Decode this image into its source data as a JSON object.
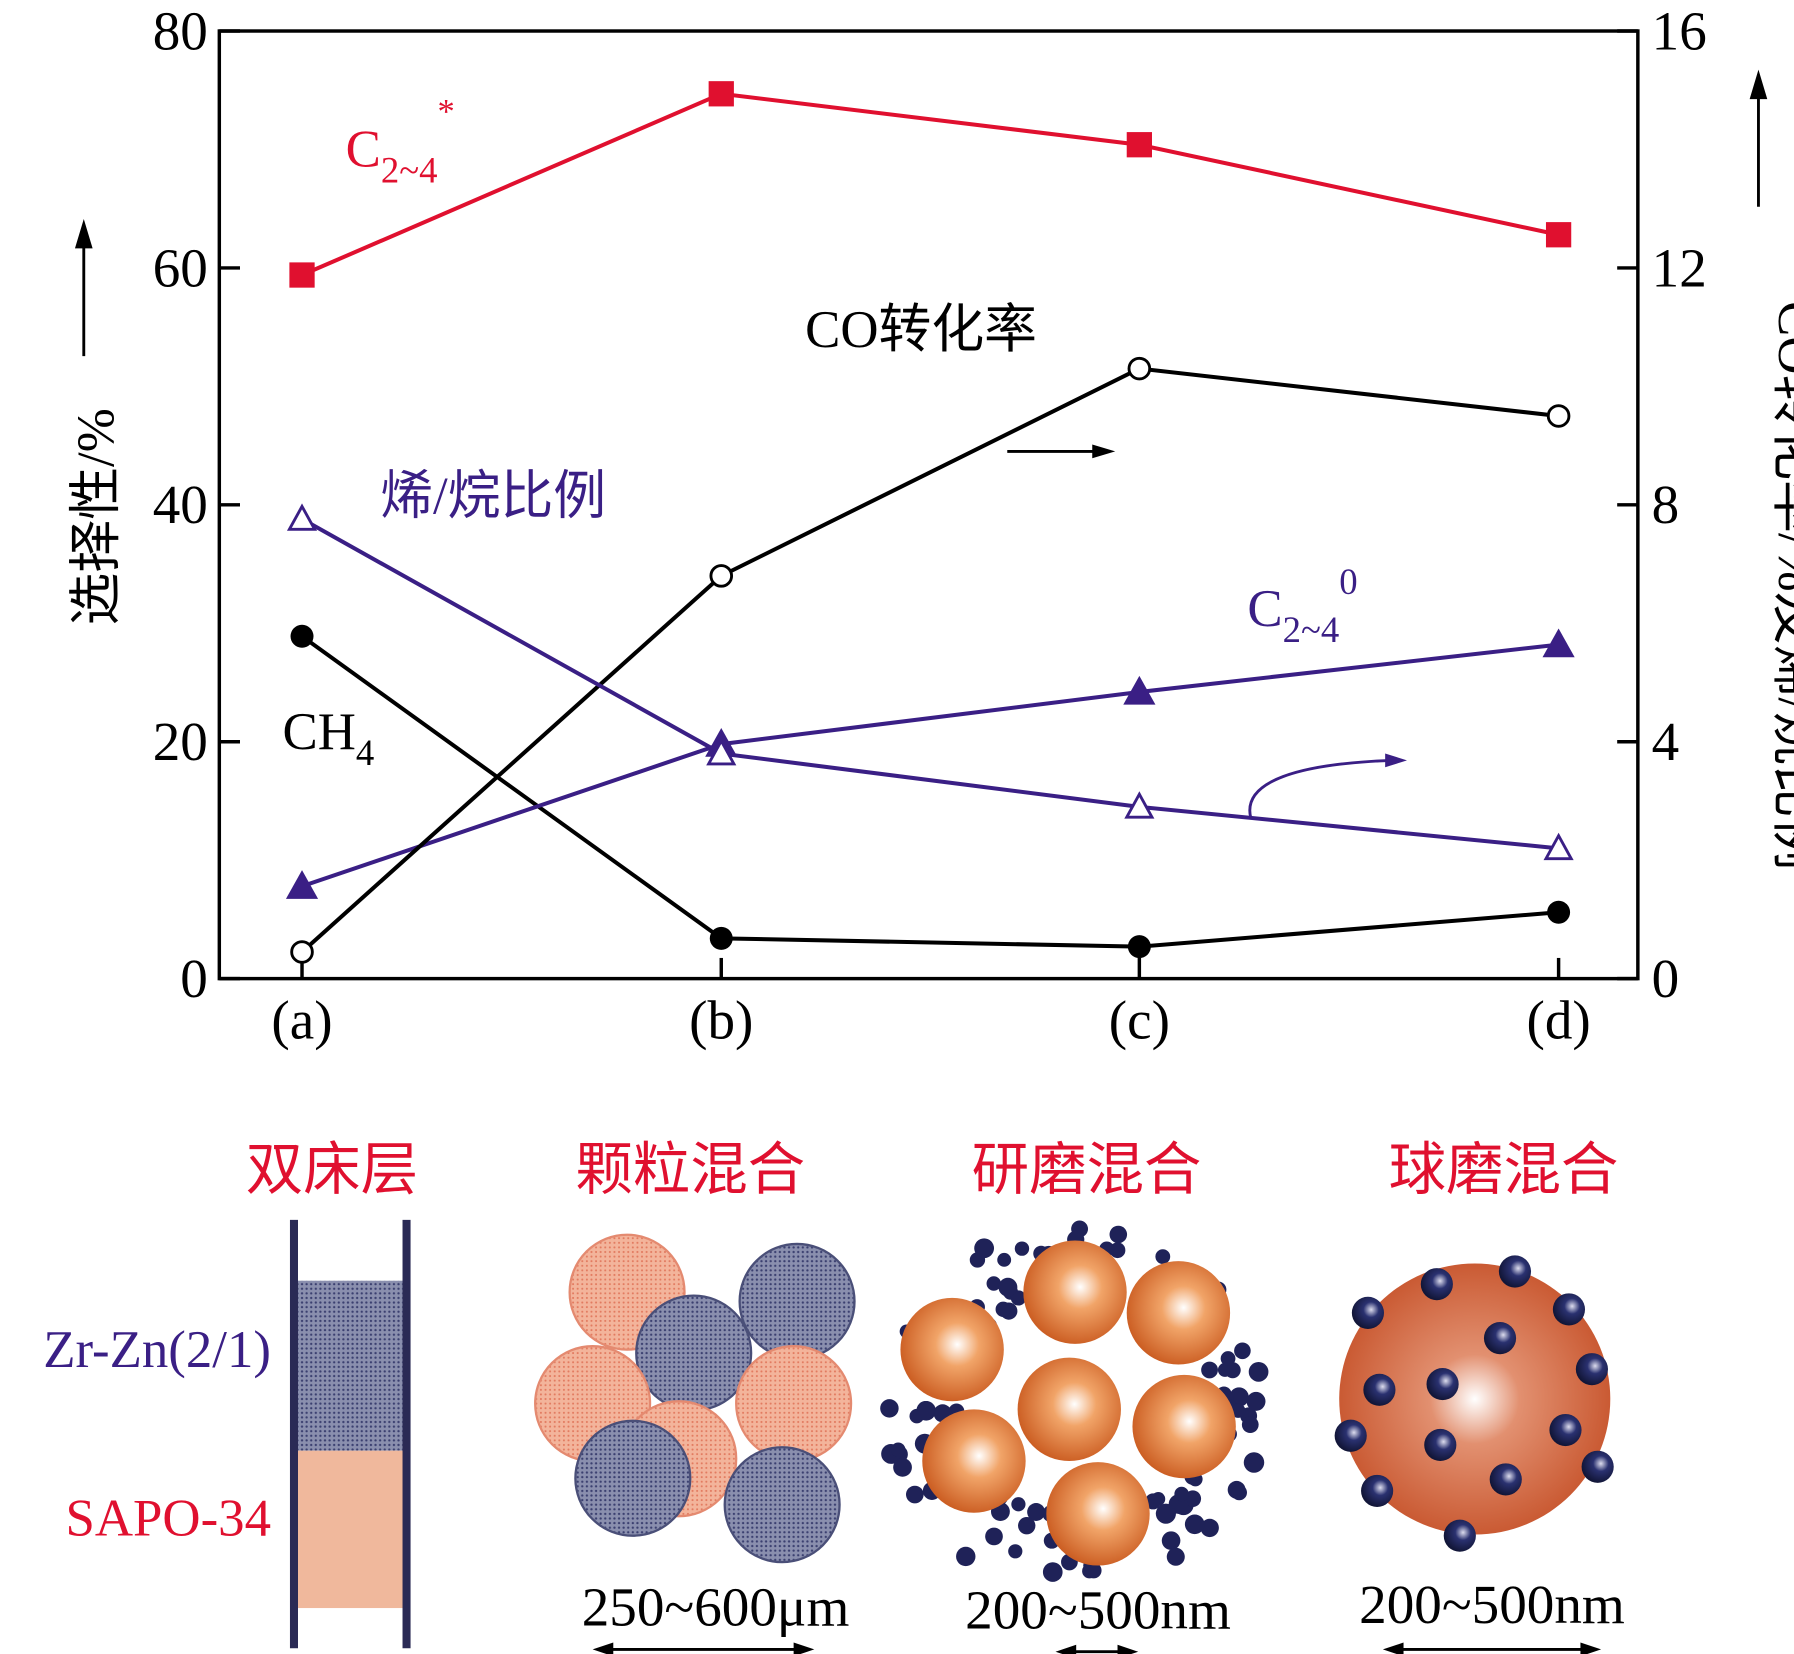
{
  "chart_data": {
    "type": "line",
    "categories": [
      "(a)",
      "(b)",
      "(c)",
      "(d)"
    ],
    "y_left": {
      "label": "选择性/%",
      "ylim": [
        0,
        80
      ],
      "ticks": [
        "0",
        "20",
        "40",
        "60",
        "80"
      ]
    },
    "y_right": {
      "label": "CO转化率/%及烯/烷比例",
      "ylim": [
        0,
        16
      ],
      "ticks": [
        "0",
        "4",
        "8",
        "12",
        "16"
      ]
    },
    "grid": false,
    "series": [
      {
        "name": "C2~4*",
        "label_main": "C",
        "label_sub": "2~4",
        "label_sup": "*",
        "axis": "left",
        "marker": "square",
        "color": "#e0102f",
        "values": [
          59.4,
          74.7,
          70.4,
          62.8
        ]
      },
      {
        "name": "CH4",
        "label_main": "CH",
        "label_sub": "4",
        "label_sup": "",
        "axis": "left",
        "marker": "filled-circle",
        "color": "#000000",
        "values": [
          28.9,
          3.4,
          2.7,
          5.6
        ]
      },
      {
        "name": "C2~40",
        "label_main": "C",
        "label_sub": "2~4",
        "label_sup": "0",
        "axis": "left",
        "marker": "filled-triangle",
        "color": "#3a1f85",
        "values": [
          7.8,
          19.8,
          24.2,
          28.2
        ]
      },
      {
        "name": "CO转化率",
        "label_main": "CO转化率",
        "label_sub": "",
        "label_sup": "",
        "axis": "right",
        "marker": "open-circle",
        "color": "#000000",
        "values": [
          0.45,
          6.8,
          10.3,
          9.5
        ]
      },
      {
        "name": "烯/烷比例",
        "label_main": "烯/烷比例",
        "label_sub": "",
        "label_sup": "",
        "axis": "right",
        "marker": "open-triangle",
        "color": "#3a1f85",
        "values": [
          7.76,
          3.8,
          2.9,
          2.2
        ]
      }
    ]
  },
  "illustrations": {
    "titles": [
      "双床层",
      "颗粒混合",
      "研磨混合",
      "球磨混合"
    ],
    "bed_labels": [
      "Zr-Zn(2/1)",
      "SAPO-34"
    ],
    "sizes": [
      "250~600μm",
      "200~500nm",
      "200~500nm"
    ],
    "colors": {
      "title": "#e0102f",
      "zrzn": "#3a1f85",
      "sapo": "#e0102f"
    }
  }
}
